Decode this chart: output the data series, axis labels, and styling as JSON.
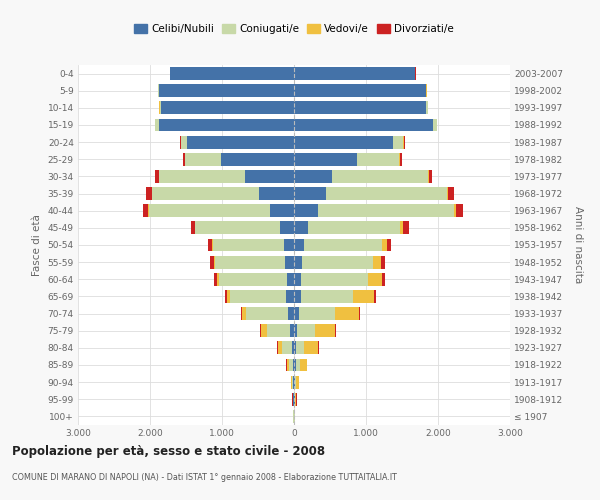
{
  "age_groups": [
    "100+",
    "95-99",
    "90-94",
    "85-89",
    "80-84",
    "75-79",
    "70-74",
    "65-69",
    "60-64",
    "55-59",
    "50-54",
    "45-49",
    "40-44",
    "35-39",
    "30-34",
    "25-29",
    "20-24",
    "15-19",
    "10-14",
    "5-9",
    "0-4"
  ],
  "birth_years": [
    "≤ 1907",
    "1908-1912",
    "1913-1917",
    "1918-1922",
    "1923-1927",
    "1928-1932",
    "1933-1937",
    "1938-1942",
    "1943-1947",
    "1948-1952",
    "1953-1957",
    "1958-1962",
    "1963-1967",
    "1968-1972",
    "1973-1977",
    "1978-1982",
    "1983-1987",
    "1988-1992",
    "1993-1997",
    "1998-2002",
    "2003-2007"
  ],
  "males": {
    "celibi": [
      5,
      8,
      12,
      20,
      30,
      50,
      90,
      110,
      95,
      125,
      140,
      190,
      340,
      490,
      680,
      1020,
      1480,
      1880,
      1850,
      1880,
      1720
    ],
    "coniugati": [
      4,
      8,
      18,
      55,
      140,
      330,
      580,
      780,
      940,
      970,
      990,
      1180,
      1680,
      1480,
      1190,
      490,
      90,
      45,
      18,
      4,
      4
    ],
    "vedovi": [
      2,
      4,
      8,
      28,
      55,
      75,
      55,
      45,
      28,
      18,
      14,
      9,
      4,
      4,
      4,
      4,
      4,
      2,
      2,
      2,
      2
    ],
    "divorziati": [
      1,
      1,
      2,
      4,
      9,
      14,
      18,
      28,
      48,
      58,
      52,
      48,
      78,
      78,
      58,
      28,
      9,
      4,
      2,
      2,
      2
    ]
  },
  "females": {
    "nubili": [
      4,
      8,
      12,
      22,
      28,
      45,
      75,
      95,
      95,
      115,
      140,
      190,
      340,
      440,
      530,
      880,
      1380,
      1930,
      1830,
      1830,
      1680
    ],
    "coniugate": [
      4,
      12,
      22,
      65,
      115,
      240,
      490,
      730,
      930,
      980,
      1080,
      1280,
      1880,
      1680,
      1330,
      580,
      140,
      55,
      28,
      9,
      4
    ],
    "vedove": [
      4,
      14,
      38,
      95,
      195,
      290,
      340,
      290,
      195,
      115,
      75,
      48,
      28,
      18,
      14,
      9,
      7,
      4,
      3,
      2,
      2
    ],
    "divorziate": [
      1,
      1,
      2,
      4,
      7,
      14,
      18,
      28,
      48,
      58,
      58,
      78,
      98,
      78,
      48,
      28,
      9,
      4,
      2,
      2,
      2
    ]
  },
  "colors": {
    "celibi": "#4472a8",
    "coniugati": "#c8d9a8",
    "vedovi": "#f0c040",
    "divorziati": "#cc2222"
  },
  "bg_color": "#f8f8f8",
  "plot_bg": "#ffffff",
  "grid_color": "#dddddd",
  "ylabel_left": "Fasce di età",
  "ylabel_right": "Anni di nascita",
  "title": "Popolazione per età, sesso e stato civile - 2008",
  "subtitle": "COMUNE DI MARANO DI NAPOLI (NA) - Dati ISTAT 1° gennaio 2008 - Elaborazione TUTTAITALIA.IT",
  "legend_labels": [
    "Celibi/Nubili",
    "Coniugati/e",
    "Vedovi/e",
    "Divorziati/e"
  ]
}
